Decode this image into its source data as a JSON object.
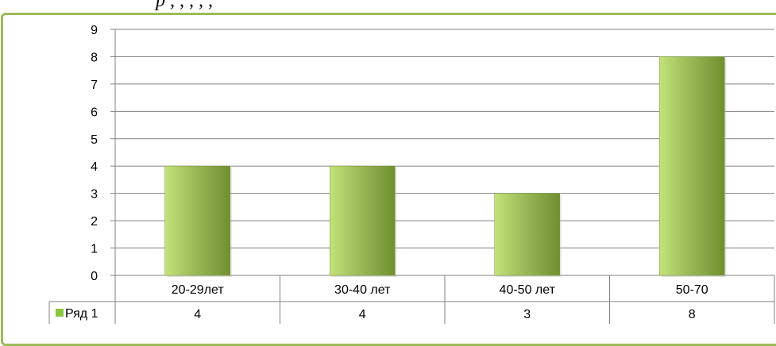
{
  "caption": "р             ,                         ,  ,      ,  ,",
  "chart_data": {
    "type": "bar",
    "categories": [
      "20-29лет",
      "30-40 лет",
      "40-50 лет",
      "50-70"
    ],
    "series": [
      {
        "name": "Ряд 1",
        "values": [
          4,
          4,
          3,
          8
        ]
      }
    ],
    "title": "",
    "xlabel": "",
    "ylabel": "",
    "ylim": [
      0,
      9
    ],
    "yticks": [
      0,
      1,
      2,
      3,
      4,
      5,
      6,
      7,
      8,
      9
    ],
    "grid": true,
    "legend_placement": "data-table",
    "colors": {
      "bar_light": "#c4e27a",
      "bar_mid": "#9bbb59",
      "bar_dark": "#6f8f30",
      "legend_key": "#8cc63f",
      "frame": "#9bbb59"
    }
  }
}
